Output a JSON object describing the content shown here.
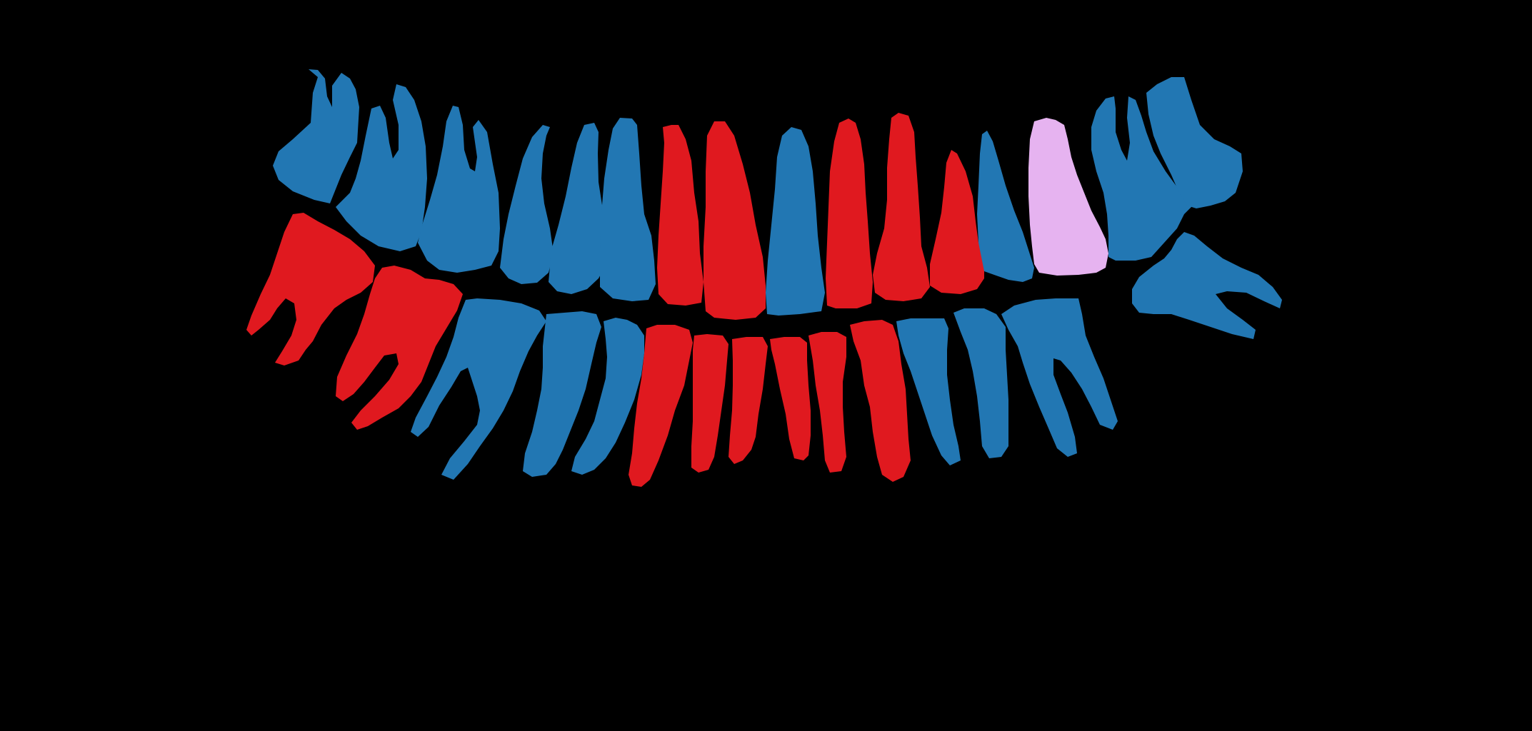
{
  "image": {
    "background": "#000000"
  },
  "legend_colors": {
    "blue": "#2277b3",
    "red": "#e0191f",
    "pink": "#e6b3f0"
  },
  "teeth": {
    "upper": [
      {
        "name": "upper-tooth-1",
        "color": "blue"
      },
      {
        "name": "upper-tooth-2",
        "color": "blue"
      },
      {
        "name": "upper-tooth-3",
        "color": "blue"
      },
      {
        "name": "upper-tooth-4",
        "color": "blue"
      },
      {
        "name": "upper-tooth-5",
        "color": "blue"
      },
      {
        "name": "upper-tooth-6",
        "color": "blue"
      },
      {
        "name": "upper-tooth-7",
        "color": "red"
      },
      {
        "name": "upper-tooth-8",
        "color": "red"
      },
      {
        "name": "upper-tooth-9",
        "color": "blue"
      },
      {
        "name": "upper-tooth-10",
        "color": "red"
      },
      {
        "name": "upper-tooth-11",
        "color": "red"
      },
      {
        "name": "upper-tooth-12",
        "color": "red"
      },
      {
        "name": "upper-tooth-13",
        "color": "blue"
      },
      {
        "name": "upper-tooth-14",
        "color": "pink"
      },
      {
        "name": "upper-tooth-15",
        "color": "blue"
      },
      {
        "name": "upper-tooth-16",
        "color": "blue"
      },
      {
        "name": "upper-tooth-17",
        "color": "blue"
      }
    ],
    "lower": [
      {
        "name": "lower-tooth-1",
        "color": "red"
      },
      {
        "name": "lower-tooth-2",
        "color": "red"
      },
      {
        "name": "lower-tooth-3",
        "color": "blue"
      },
      {
        "name": "lower-tooth-4",
        "color": "blue"
      },
      {
        "name": "lower-tooth-5",
        "color": "blue"
      },
      {
        "name": "lower-tooth-6",
        "color": "red"
      },
      {
        "name": "lower-tooth-7",
        "color": "red"
      },
      {
        "name": "lower-tooth-8",
        "color": "red"
      },
      {
        "name": "lower-tooth-9",
        "color": "red"
      },
      {
        "name": "lower-tooth-10",
        "color": "red"
      },
      {
        "name": "lower-tooth-11",
        "color": "red"
      },
      {
        "name": "lower-tooth-12",
        "color": "blue"
      },
      {
        "name": "lower-tooth-13",
        "color": "blue"
      },
      {
        "name": "lower-tooth-14",
        "color": "blue"
      },
      {
        "name": "lower-tooth-15",
        "color": "blue"
      }
    ]
  }
}
